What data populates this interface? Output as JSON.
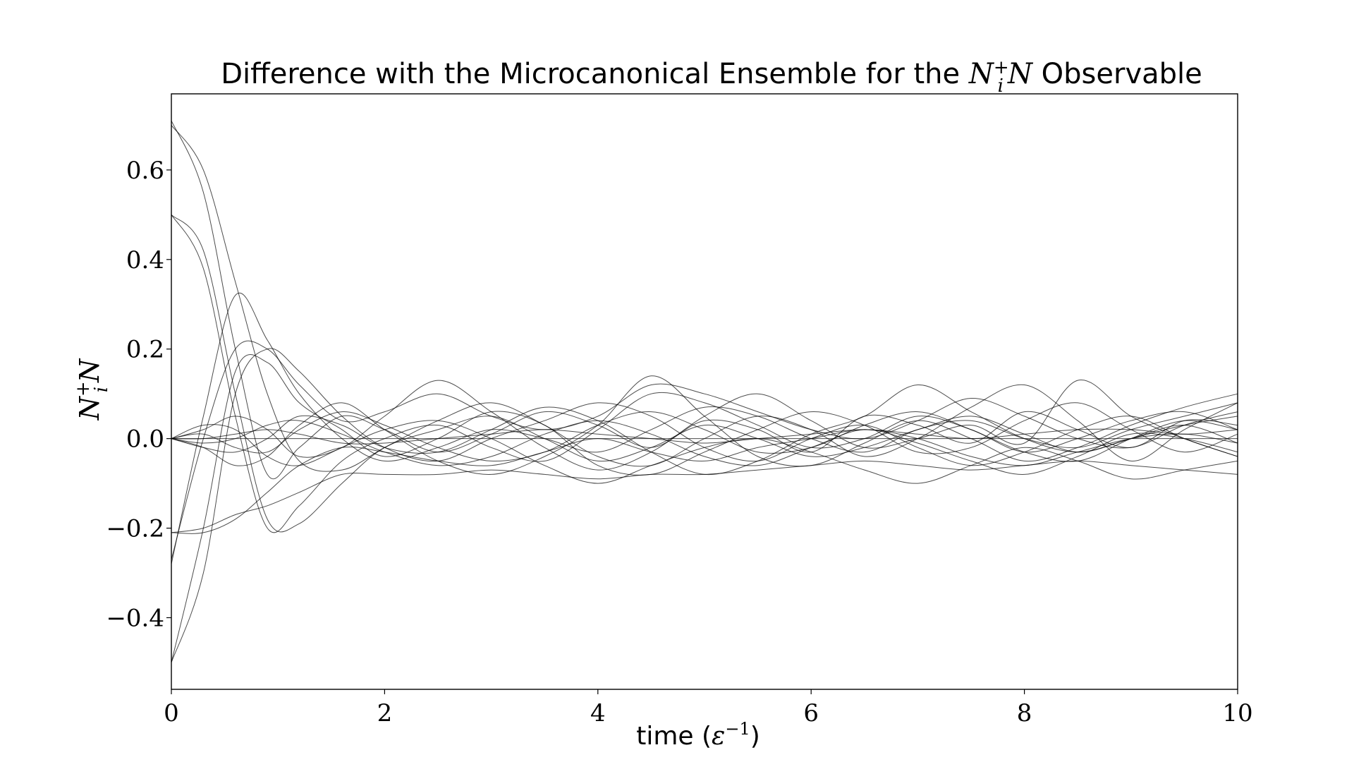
{
  "chart_data": {
    "type": "line",
    "title": {
      "prefix": "Difference with the Microcanonical Ensemble for the ",
      "math_base": "N",
      "math_sup": "+",
      "math_sub": "i",
      "math_tail": "N",
      "suffix": " Observable"
    },
    "xlabel": {
      "text": "time (",
      "math": "ε",
      "sup": "−1",
      "close": ")"
    },
    "ylabel": {
      "base": "N",
      "sup": "+",
      "sub": "i",
      "tail": "N"
    },
    "xlim": [
      0,
      10
    ],
    "ylim": [
      -0.56,
      0.77
    ],
    "xticks": [
      0,
      2,
      4,
      6,
      8,
      10
    ],
    "xtick_labels": [
      "0",
      "2",
      "4",
      "6",
      "8",
      "10"
    ],
    "yticks": [
      -0.4,
      -0.2,
      0.0,
      0.2,
      0.4,
      0.6
    ],
    "ytick_labels": [
      "−0.4",
      "−0.2",
      "0.0",
      "0.2",
      "0.4",
      "0.6"
    ],
    "grid": false,
    "line_color": "#000000",
    "series": [
      {
        "x": [
          0,
          0.3,
          0.6,
          0.9,
          1.2,
          1.6,
          2,
          2.5,
          3,
          3.5,
          4,
          4.5,
          5,
          5.5,
          6,
          6.5,
          7,
          7.5,
          8,
          8.5,
          9,
          9.5,
          10
        ],
        "y": [
          0.71,
          0.55,
          0.2,
          -0.08,
          -0.02,
          0.05,
          0.02,
          -0.03,
          0.01,
          0.06,
          0.03,
          -0.02,
          0.04,
          0.02,
          -0.03,
          0.05,
          0.03,
          -0.01,
          0.06,
          0.02,
          -0.02,
          0.04,
          0.03
        ]
      },
      {
        "x": [
          0,
          0.3,
          0.6,
          0.9,
          1.2,
          1.6,
          2,
          2.5,
          3,
          3.5,
          4,
          4.5,
          5,
          5.5,
          6,
          6.5,
          7,
          7.5,
          8,
          8.5,
          9,
          9.5,
          10
        ],
        "y": [
          0.7,
          0.6,
          0.35,
          0.1,
          -0.05,
          -0.07,
          -0.02,
          0.04,
          0.08,
          0.03,
          -0.04,
          -0.06,
          0.0,
          0.05,
          0.02,
          -0.04,
          0.0,
          0.07,
          0.12,
          0.04,
          -0.05,
          0.02,
          0.08
        ]
      },
      {
        "x": [
          0,
          0.3,
          0.6,
          0.9,
          1.2,
          1.6,
          2,
          2.5,
          3,
          3.5,
          4,
          4.5,
          5,
          5.5,
          6,
          6.5,
          7,
          7.5,
          8,
          8.5,
          9,
          9.5,
          10
        ],
        "y": [
          0.5,
          0.38,
          0.05,
          -0.2,
          -0.15,
          -0.05,
          0.0,
          0.03,
          -0.02,
          -0.05,
          0.02,
          0.1,
          0.08,
          0.03,
          -0.02,
          0.0,
          0.05,
          0.02,
          -0.03,
          0.0,
          0.04,
          0.06,
          0.02
        ]
      },
      {
        "x": [
          0,
          0.3,
          0.6,
          0.9,
          1.2,
          1.6,
          2,
          2.5,
          3,
          3.5,
          4,
          4.5,
          5,
          5.5,
          6,
          6.5,
          7,
          7.5,
          8,
          8.5,
          9,
          9.5,
          10
        ],
        "y": [
          0.5,
          0.42,
          0.1,
          -0.18,
          -0.19,
          -0.1,
          -0.02,
          0.02,
          0.05,
          0.0,
          -0.05,
          -0.02,
          0.03,
          0.0,
          -0.04,
          -0.02,
          0.02,
          0.05,
          0.01,
          -0.03,
          0.0,
          0.03,
          -0.01
        ]
      },
      {
        "x": [
          0,
          0.3,
          0.6,
          0.9,
          1.2,
          1.6,
          2,
          2.5,
          3,
          3.5,
          4,
          4.5,
          5,
          5.5,
          6,
          6.5,
          7,
          7.5,
          8,
          8.5,
          9,
          9.5,
          10
        ],
        "y": [
          -0.5,
          -0.3,
          0.1,
          0.2,
          0.15,
          0.05,
          -0.02,
          -0.05,
          0.0,
          0.04,
          0.08,
          0.05,
          -0.02,
          -0.05,
          0.0,
          0.03,
          -0.02,
          -0.06,
          -0.03,
          0.02,
          0.05,
          0.0,
          -0.04
        ]
      },
      {
        "x": [
          0,
          0.3,
          0.6,
          0.9,
          1.2,
          1.6,
          2,
          2.5,
          3,
          3.5,
          4,
          4.5,
          5,
          5.5,
          6,
          6.5,
          7,
          7.5,
          8,
          8.5,
          9,
          9.5,
          10
        ],
        "y": [
          -0.5,
          -0.2,
          0.15,
          0.17,
          0.08,
          0.02,
          -0.04,
          0.0,
          0.06,
          0.03,
          -0.06,
          -0.08,
          -0.03,
          0.02,
          0.06,
          0.03,
          -0.03,
          -0.02,
          0.04,
          0.08,
          0.02,
          -0.03,
          0.01
        ]
      },
      {
        "x": [
          0,
          0.3,
          0.6,
          0.9,
          1.2,
          1.6,
          2,
          2.5,
          3,
          3.5,
          4,
          4.5,
          5,
          5.5,
          6,
          6.5,
          7,
          7.5,
          8,
          8.5,
          9,
          9.5,
          10
        ],
        "y": [
          -0.28,
          0.05,
          0.32,
          0.22,
          0.1,
          0.0,
          -0.05,
          -0.02,
          0.02,
          0.0,
          -0.03,
          0.02,
          0.07,
          0.05,
          0.0,
          -0.03,
          0.02,
          0.04,
          0.0,
          -0.02,
          0.02,
          0.05,
          0.08
        ]
      },
      {
        "x": [
          0,
          0.3,
          0.6,
          0.9,
          1.2,
          1.6,
          2,
          2.5,
          3,
          3.5,
          4,
          4.5,
          5,
          5.5,
          6,
          6.5,
          7,
          7.5,
          8,
          8.5,
          9,
          9.5,
          10
        ],
        "y": [
          -0.27,
          0.0,
          0.2,
          0.2,
          0.12,
          0.04,
          0.06,
          0.1,
          0.05,
          0.02,
          0.05,
          0.12,
          0.1,
          0.06,
          0.02,
          0.0,
          0.04,
          0.09,
          0.05,
          0.0,
          -0.02,
          0.03,
          0.06
        ]
      },
      {
        "x": [
          0,
          0.3,
          0.6,
          0.9,
          1.2,
          1.6,
          2,
          2.5,
          3,
          3.5,
          4,
          4.5,
          5,
          5.5,
          6,
          6.5,
          7,
          7.5,
          8,
          8.5,
          9,
          9.5,
          10
        ],
        "y": [
          -0.21,
          -0.21,
          -0.18,
          -0.12,
          -0.06,
          -0.02,
          -0.03,
          -0.05,
          -0.06,
          -0.03,
          0.0,
          -0.03,
          -0.05,
          -0.02,
          0.0,
          0.02,
          0.0,
          -0.04,
          -0.06,
          -0.03,
          0.0,
          0.01,
          -0.01
        ]
      },
      {
        "x": [
          0,
          0.3,
          0.6,
          0.9,
          1.2,
          1.6,
          2,
          2.5,
          3,
          3.5,
          4,
          4.5,
          5,
          5.5,
          6,
          6.5,
          7,
          7.5,
          8,
          8.5,
          9,
          9.5,
          10
        ],
        "y": [
          -0.21,
          -0.2,
          -0.17,
          -0.15,
          -0.12,
          -0.08,
          -0.08,
          -0.08,
          -0.07,
          -0.08,
          -0.09,
          -0.08,
          -0.08,
          -0.07,
          -0.06,
          -0.05,
          -0.06,
          -0.07,
          -0.06,
          -0.05,
          -0.06,
          -0.07,
          -0.08
        ]
      },
      {
        "x": [
          0,
          0.3,
          0.6,
          0.9,
          1.2,
          1.6,
          2,
          2.5,
          3,
          3.5,
          4,
          4.5,
          5,
          5.5,
          6,
          6.5,
          7,
          7.5,
          8,
          8.5,
          9,
          9.5,
          10
        ],
        "y": [
          0.0,
          0.0,
          0.0,
          0.0,
          0.0,
          0.0,
          0.0,
          0.0,
          0.0,
          0.0,
          0.0,
          0.0,
          0.0,
          0.0,
          0.0,
          0.0,
          0.0,
          0.0,
          0.0,
          0.0,
          0.0,
          0.0,
          0.0
        ]
      },
      {
        "x": [
          0,
          0.3,
          0.6,
          0.9,
          1.2,
          1.6,
          2,
          2.5,
          3,
          3.5,
          4,
          4.5,
          5,
          5.5,
          6,
          6.5,
          7,
          7.5,
          8,
          8.5,
          9,
          9.5,
          10
        ],
        "y": [
          0.0,
          0.01,
          -0.02,
          -0.03,
          0.02,
          0.06,
          0.03,
          -0.02,
          -0.05,
          -0.03,
          0.03,
          0.06,
          0.02,
          -0.03,
          -0.02,
          0.03,
          0.06,
          0.02,
          -0.03,
          -0.05,
          0.0,
          0.04,
          0.02
        ]
      },
      {
        "x": [
          0,
          0.3,
          0.6,
          0.9,
          1.2,
          1.6,
          2,
          2.5,
          3,
          3.5,
          4,
          4.5,
          5,
          5.5,
          6,
          6.5,
          7,
          7.5,
          8,
          8.5,
          9,
          9.5,
          10
        ],
        "y": [
          0.0,
          -0.01,
          0.0,
          0.03,
          0.04,
          0.01,
          -0.03,
          -0.06,
          -0.04,
          0.01,
          0.04,
          0.01,
          -0.04,
          -0.06,
          -0.02,
          0.02,
          -0.01,
          -0.05,
          -0.08,
          -0.04,
          0.01,
          0.0,
          -0.03
        ]
      },
      {
        "x": [
          0,
          0.3,
          0.6,
          0.9,
          1.2,
          1.6,
          2,
          2.5,
          3,
          3.5,
          4,
          4.5,
          5,
          5.5,
          6,
          6.5,
          7,
          7.5,
          8,
          8.5,
          9,
          9.5,
          10
        ],
        "y": [
          0.0,
          0.02,
          0.05,
          0.02,
          -0.04,
          -0.02,
          0.05,
          0.13,
          0.06,
          -0.02,
          -0.07,
          -0.03,
          0.05,
          0.1,
          0.04,
          -0.02,
          0.0,
          0.03,
          -0.01,
          0.13,
          0.05,
          0.0,
          -0.04
        ]
      },
      {
        "x": [
          0,
          0.3,
          0.6,
          0.9,
          1.2,
          1.6,
          2,
          2.5,
          3,
          3.5,
          4,
          4.5,
          5,
          5.5,
          6,
          6.5,
          7,
          7.5,
          8,
          8.5,
          9,
          9.5,
          10
        ],
        "y": [
          0.0,
          -0.02,
          -0.06,
          -0.04,
          0.03,
          0.08,
          0.02,
          -0.05,
          -0.08,
          -0.04,
          0.03,
          0.14,
          0.05,
          -0.04,
          -0.06,
          -0.01,
          0.04,
          0.0,
          -0.05,
          -0.02,
          0.03,
          0.07,
          0.1
        ]
      },
      {
        "x": [
          0,
          0.3,
          0.6,
          0.9,
          1.2,
          1.6,
          2,
          2.5,
          3,
          3.5,
          4,
          4.5,
          5,
          5.5,
          6,
          6.5,
          7,
          7.5,
          8,
          8.5,
          9,
          9.5,
          10
        ],
        "y": [
          0.0,
          0.03,
          0.02,
          -0.04,
          -0.06,
          -0.02,
          0.02,
          0.04,
          0.0,
          -0.06,
          -0.1,
          -0.06,
          -0.02,
          0.0,
          -0.03,
          -0.07,
          -0.1,
          -0.06,
          -0.02,
          -0.05,
          -0.09,
          -0.07,
          -0.05
        ]
      },
      {
        "x": [
          0,
          0.3,
          0.6,
          0.9,
          1.2,
          1.6,
          2,
          2.5,
          3,
          3.5,
          4,
          4.5,
          5,
          5.5,
          6,
          6.5,
          7,
          7.5,
          8,
          8.5,
          9,
          9.5,
          10
        ],
        "y": [
          0.0,
          -0.02,
          -0.03,
          0.0,
          0.05,
          0.03,
          -0.02,
          -0.03,
          0.02,
          0.07,
          0.04,
          -0.03,
          -0.08,
          -0.05,
          0.01,
          0.05,
          0.12,
          0.06,
          0.0,
          -0.03,
          0.0,
          0.03,
          0.05
        ]
      },
      {
        "x": [
          0,
          0.3,
          0.6,
          0.9,
          1.2,
          1.6,
          2,
          2.5,
          3,
          3.5,
          4,
          4.5,
          5,
          5.5,
          6,
          6.5,
          7,
          7.5,
          8,
          8.5,
          9,
          9.5,
          10
        ],
        "y": [
          0.0,
          0.0,
          0.01,
          0.02,
          0.01,
          -0.01,
          -0.01,
          0.0,
          0.01,
          0.02,
          0.01,
          0.0,
          -0.01,
          0.0,
          0.01,
          0.02,
          0.01,
          0.0,
          0.01,
          0.02,
          0.02,
          0.01,
          0.02
        ]
      }
    ]
  }
}
